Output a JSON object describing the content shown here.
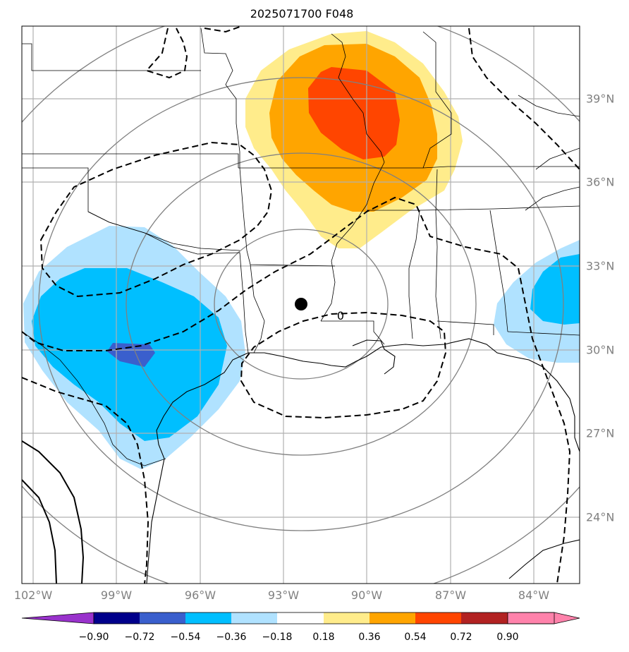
{
  "title": "2025071700 F048",
  "longitude_labels": [
    "102°W",
    "99°W",
    "96°W",
    "93°W",
    "90°W",
    "87°W",
    "84°W"
  ],
  "latitude_labels": [
    "39°N",
    "36°N",
    "33°N",
    "30°N",
    "27°N",
    "24°N"
  ],
  "contour_label": "0",
  "colorbar": {
    "ticks": [
      "−0.90",
      "−0.72",
      "−0.54",
      "−0.36",
      "−0.18",
      "0.18",
      "0.36",
      "0.54",
      "0.72",
      "0.90"
    ],
    "colors": [
      "#9932cc",
      "#00008b",
      "#3a5fcd",
      "#00bfff",
      "#b0e2ff",
      "#ffffff",
      "#ffec8b",
      "#ffa500",
      "#ff4500",
      "#b22222",
      "#ff82ab"
    ]
  },
  "colors": {
    "light_yellow": "#ffec8b",
    "orange": "#ffa500",
    "red_orange": "#ff4500",
    "light_blue": "#b0e2ff",
    "deep_sky_blue": "#00bfff",
    "royal_blue": "#3a5fcd",
    "gridline": "#b0b0b0",
    "ring": "#808080"
  }
}
